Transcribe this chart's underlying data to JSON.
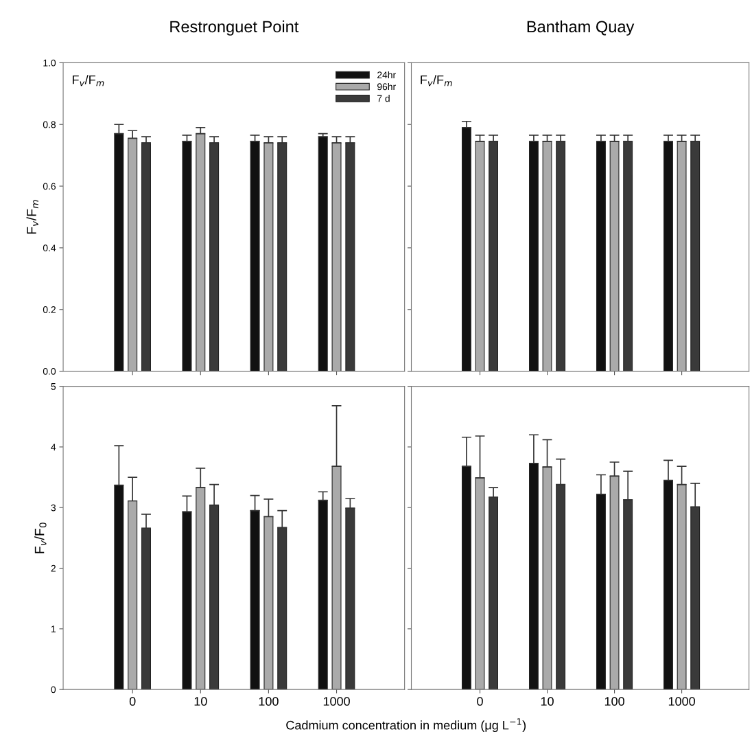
{
  "chart_data": [
    {
      "type": "bar",
      "title": "Restronguet Point",
      "ylabel": "F$_{v}$/F$_{m}$",
      "annotations": [
        "F$_{v}$/F$_{m}$"
      ],
      "categories": [
        "0",
        "10",
        "100",
        "1000"
      ],
      "ylim": [
        0,
        1
      ],
      "yticks": [
        {
          "value": 0,
          "label": "0.0"
        },
        0.2,
        0.4,
        0.6,
        0.8,
        {
          "value": 1,
          "label": "1.0"
        }
      ],
      "tick_labels": "y",
      "legend": "top right",
      "grid": false,
      "series": [
        {
          "name": "24hr",
          "color": "#111111",
          "values": [
            0.77,
            0.745,
            0.745,
            0.76
          ],
          "errors": [
            [
              0.77,
              0.8
            ],
            [
              0.745,
              0.765
            ],
            [
              0.745,
              0.765
            ],
            [
              0.76,
              0.77
            ]
          ]
        },
        {
          "name": "96hr",
          "color": "#aaaaaa",
          "values": [
            0.755,
            0.77,
            0.74,
            0.74
          ],
          "errors": [
            [
              0.755,
              0.78
            ],
            [
              0.77,
              0.79
            ],
            [
              0.74,
              0.76
            ],
            [
              0.74,
              0.76
            ]
          ]
        },
        {
          "name": "7 d",
          "color": "#3a3a3a",
          "values": [
            0.74,
            0.74,
            0.74,
            0.74
          ],
          "errors": [
            [
              0.74,
              0.76
            ],
            [
              0.74,
              0.76
            ],
            [
              0.74,
              0.76
            ],
            [
              0.74,
              0.76
            ]
          ]
        }
      ]
    },
    {
      "type": "bar",
      "title": "Bantham Quay",
      "annotations": [
        "F$_{v}$/F$_{m}$"
      ],
      "categories": [
        "0",
        "10",
        "100",
        "1000"
      ],
      "ylim": [
        0,
        1
      ],
      "yticks": [
        0,
        0.2,
        0.4,
        0.6,
        0.8,
        1
      ],
      "tick_labels": false,
      "grid": false,
      "series": [
        {
          "color": "#111111",
          "values": [
            0.79,
            0.745,
            0.745,
            0.745
          ],
          "errors": [
            [
              0.79,
              0.81
            ],
            [
              0.745,
              0.765
            ],
            [
              0.745,
              0.765
            ],
            [
              0.745,
              0.765
            ]
          ]
        },
        {
          "color": "#aaaaaa",
          "values": [
            0.745,
            0.745,
            0.745,
            0.745
          ],
          "errors": [
            [
              0.745,
              0.765
            ],
            [
              0.745,
              0.765
            ],
            [
              0.745,
              0.765
            ],
            [
              0.745,
              0.765
            ]
          ]
        },
        {
          "color": "#3a3a3a",
          "values": [
            0.745,
            0.745,
            0.745,
            0.745
          ],
          "errors": [
            [
              0.745,
              0.765
            ],
            [
              0.745,
              0.765
            ],
            [
              0.745,
              0.765
            ],
            [
              0.745,
              0.765
            ]
          ]
        }
      ]
    },
    {
      "type": "bar",
      "ylabel": "F$_{v}$/F$_{0}$",
      "xlabel": "Cadmium concentration in medium (μg L$^{−1}$)",
      "categories": [
        "0",
        "10",
        "100",
        "1000"
      ],
      "ylim": [
        0,
        5
      ],
      "yticks": [
        0,
        1,
        2,
        3,
        4,
        5
      ],
      "grid": false,
      "series": [
        {
          "color": "#111111",
          "values": [
            3.37,
            2.93,
            2.95,
            3.12
          ],
          "errors": [
            [
              3.37,
              4.02
            ],
            [
              2.93,
              3.19
            ],
            [
              2.95,
              3.2
            ],
            [
              3.12,
              3.26
            ]
          ]
        },
        {
          "color": "#aaaaaa",
          "values": [
            3.11,
            3.33,
            2.85,
            3.68
          ],
          "errors": [
            [
              3.11,
              3.5
            ],
            [
              3.33,
              3.65
            ],
            [
              2.85,
              3.14
            ],
            [
              3.68,
              4.68
            ]
          ]
        },
        {
          "color": "#3a3a3a",
          "values": [
            2.66,
            3.04,
            2.67,
            2.99
          ],
          "errors": [
            [
              2.66,
              2.89
            ],
            [
              3.04,
              3.38
            ],
            [
              2.67,
              2.95
            ],
            [
              2.99,
              3.15
            ]
          ]
        }
      ]
    },
    {
      "type": "bar",
      "categories": [
        "0",
        "10",
        "100",
        "1000"
      ],
      "ylim": [
        0,
        5
      ],
      "yticks": [
        0,
        1,
        2,
        3,
        4,
        5
      ],
      "tick_labels": "x",
      "grid": false,
      "series": [
        {
          "color": "#111111",
          "values": [
            3.68,
            3.73,
            3.22,
            3.45
          ],
          "errors": [
            [
              3.68,
              4.16
            ],
            [
              3.73,
              4.2
            ],
            [
              3.22,
              3.54
            ],
            [
              3.45,
              3.78
            ]
          ]
        },
        {
          "color": "#aaaaaa",
          "values": [
            3.49,
            3.67,
            3.52,
            3.38
          ],
          "errors": [
            [
              3.49,
              4.18
            ],
            [
              3.67,
              4.12
            ],
            [
              3.52,
              3.75
            ],
            [
              3.38,
              3.68
            ]
          ]
        },
        {
          "color": "#3a3a3a",
          "values": [
            3.17,
            3.38,
            3.13,
            3.01
          ],
          "errors": [
            [
              3.17,
              3.33
            ],
            [
              3.38,
              3.8
            ],
            [
              3.13,
              3.6
            ],
            [
              3.01,
              3.4
            ]
          ]
        }
      ]
    }
  ]
}
